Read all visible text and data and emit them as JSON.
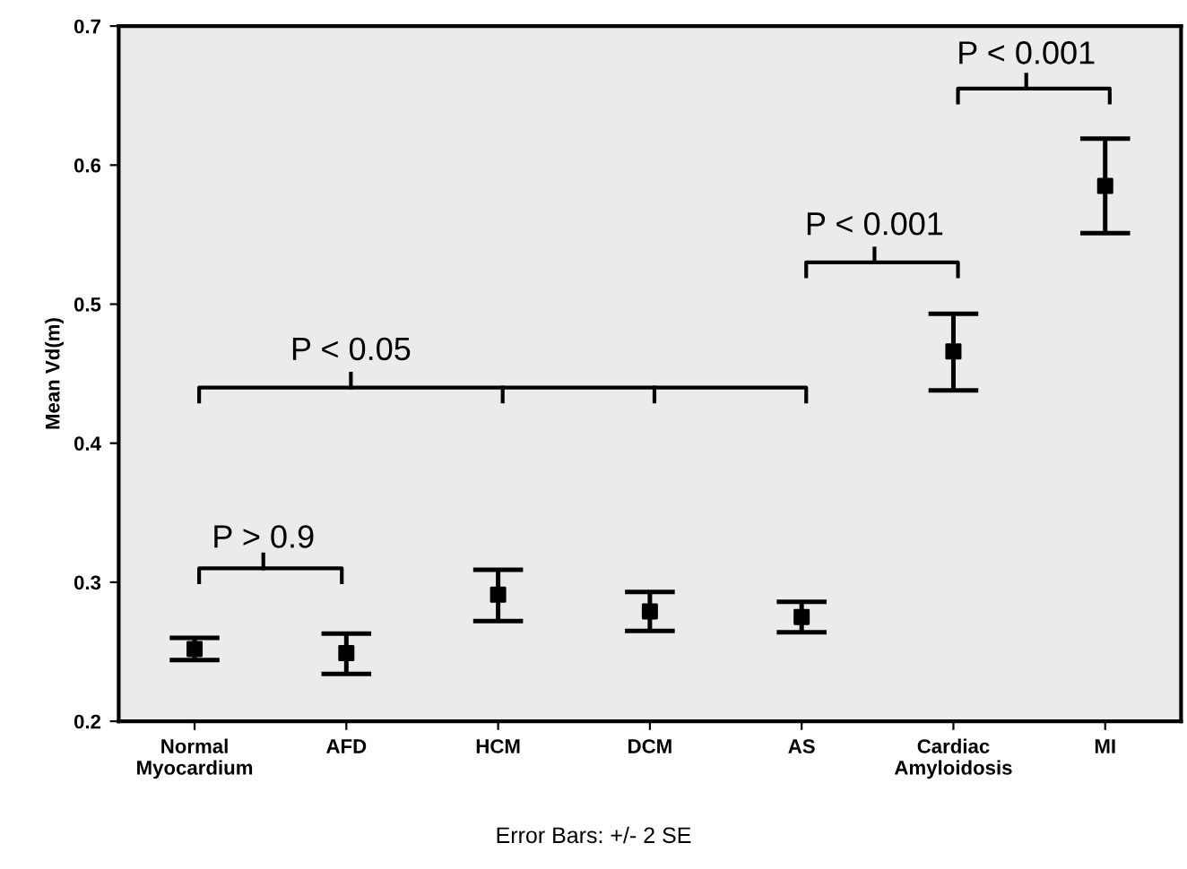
{
  "chart_data": {
    "type": "scatter",
    "ylabel": "Mean Vd(m)",
    "categories": [
      "Normal\nMyocardium",
      "AFD",
      "HCM",
      "DCM",
      "AS",
      "Cardiac\nAmyloidosis",
      "MI"
    ],
    "series": [
      {
        "color": "#000000",
        "values": [
          0.252,
          0.249,
          0.291,
          0.279,
          0.275,
          0.466,
          0.585
        ],
        "errors": [
          [
            0.244,
            0.26
          ],
          [
            0.234,
            0.263
          ],
          [
            0.272,
            0.309
          ],
          [
            0.265,
            0.293
          ],
          [
            0.264,
            0.286
          ],
          [
            0.438,
            0.493
          ],
          [
            0.551,
            0.619
          ]
        ]
      }
    ],
    "marker": "square",
    "ylim": [
      0.2,
      0.7
    ],
    "yticks": [
      0.2,
      0.3,
      0.4,
      0.5,
      0.6,
      0.7
    ],
    "grid": false,
    "legend": false,
    "annotations": [
      "P > 0.9",
      "P < 0.05",
      "P < 0.001",
      "P < 0.001",
      "Error Bars: +/- 2 SE"
    ]
  }
}
